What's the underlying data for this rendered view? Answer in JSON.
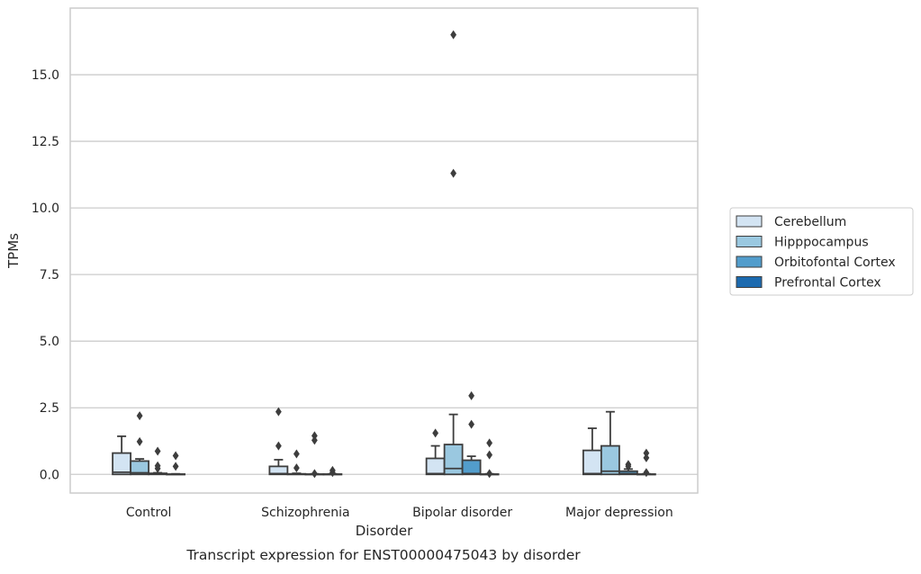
{
  "chart_data": {
    "type": "box",
    "title": "",
    "caption": "Transcript expression for ENST00000475043 by disorder",
    "xlabel": "Disorder",
    "ylabel": "TPMs",
    "ylim": [
      -0.7,
      17.5
    ],
    "yticks": [
      "0.0",
      "2.5",
      "5.0",
      "7.5",
      "10.0",
      "12.5",
      "15.0"
    ],
    "categories": [
      "Control",
      "Schizophrenia",
      "Bipolar disorder",
      "Major depression"
    ],
    "grid": "horizontal",
    "legend_position": "right",
    "series": [
      {
        "name": "Cerebellum",
        "color": "#d3e4f3",
        "boxes": [
          {
            "q1": 0.0,
            "median": 0.08,
            "q3": 0.8,
            "whisker_low": 0.0,
            "whisker_high": 1.43,
            "outliers": []
          },
          {
            "q1": 0.0,
            "median": 0.03,
            "q3": 0.3,
            "whisker_low": 0.0,
            "whisker_high": 0.55,
            "outliers": [
              2.35,
              1.07
            ]
          },
          {
            "q1": 0.0,
            "median": 0.03,
            "q3": 0.6,
            "whisker_low": 0.0,
            "whisker_high": 1.07,
            "outliers": [
              1.55
            ]
          },
          {
            "q1": 0.0,
            "median": 0.03,
            "q3": 0.9,
            "whisker_low": 0.0,
            "whisker_high": 1.73,
            "outliers": []
          }
        ]
      },
      {
        "name": "Hipppocampus",
        "color": "#9ac8e0",
        "boxes": [
          {
            "q1": 0.0,
            "median": 0.06,
            "q3": 0.5,
            "whisker_low": 0.0,
            "whisker_high": 0.58,
            "outliers": [
              2.2,
              1.23
            ]
          },
          {
            "q1": 0.0,
            "median": 0.0,
            "q3": 0.02,
            "whisker_low": 0.0,
            "whisker_high": 0.04,
            "outliers": [
              0.77,
              0.24
            ]
          },
          {
            "q1": 0.0,
            "median": 0.22,
            "q3": 1.12,
            "whisker_low": 0.0,
            "whisker_high": 2.25,
            "outliers": [
              16.5,
              11.3
            ]
          },
          {
            "q1": 0.0,
            "median": 0.12,
            "q3": 1.07,
            "whisker_low": 0.0,
            "whisker_high": 2.35,
            "outliers": []
          }
        ]
      },
      {
        "name": "Orbitofontal Cortex",
        "color": "#529dcc",
        "boxes": [
          {
            "q1": 0.0,
            "median": 0.01,
            "q3": 0.04,
            "whisker_low": 0.0,
            "whisker_high": 0.06,
            "outliers": [
              0.87,
              0.32,
              0.22
            ]
          },
          {
            "q1": 0.0,
            "median": 0.0,
            "q3": 0.01,
            "whisker_low": 0.0,
            "whisker_high": 0.02,
            "outliers": [
              1.45,
              1.28,
              0.03
            ]
          },
          {
            "q1": 0.0,
            "median": 0.03,
            "q3": 0.53,
            "whisker_low": 0.0,
            "whisker_high": 0.68,
            "outliers": [
              2.95,
              1.88
            ]
          },
          {
            "q1": 0.0,
            "median": 0.03,
            "q3": 0.12,
            "whisker_low": 0.0,
            "whisker_high": 0.2,
            "outliers": [
              0.37,
              0.3
            ]
          }
        ]
      },
      {
        "name": "Prefrontal Cortex",
        "color": "#1c6aaf",
        "boxes": [
          {
            "q1": 0.0,
            "median": 0.0,
            "q3": 0.01,
            "whisker_low": 0.0,
            "whisker_high": 0.02,
            "outliers": [
              0.7,
              0.3
            ]
          },
          {
            "q1": 0.0,
            "median": 0.0,
            "q3": 0.01,
            "whisker_low": 0.0,
            "whisker_high": 0.02,
            "outliers": [
              0.15,
              0.07
            ]
          },
          {
            "q1": 0.0,
            "median": 0.0,
            "q3": 0.01,
            "whisker_low": 0.0,
            "whisker_high": 0.02,
            "outliers": [
              1.18,
              0.73,
              0.03
            ]
          },
          {
            "q1": 0.0,
            "median": 0.0,
            "q3": 0.01,
            "whisker_low": 0.0,
            "whisker_high": 0.02,
            "outliers": [
              0.8,
              0.62,
              0.07
            ]
          }
        ]
      }
    ]
  }
}
